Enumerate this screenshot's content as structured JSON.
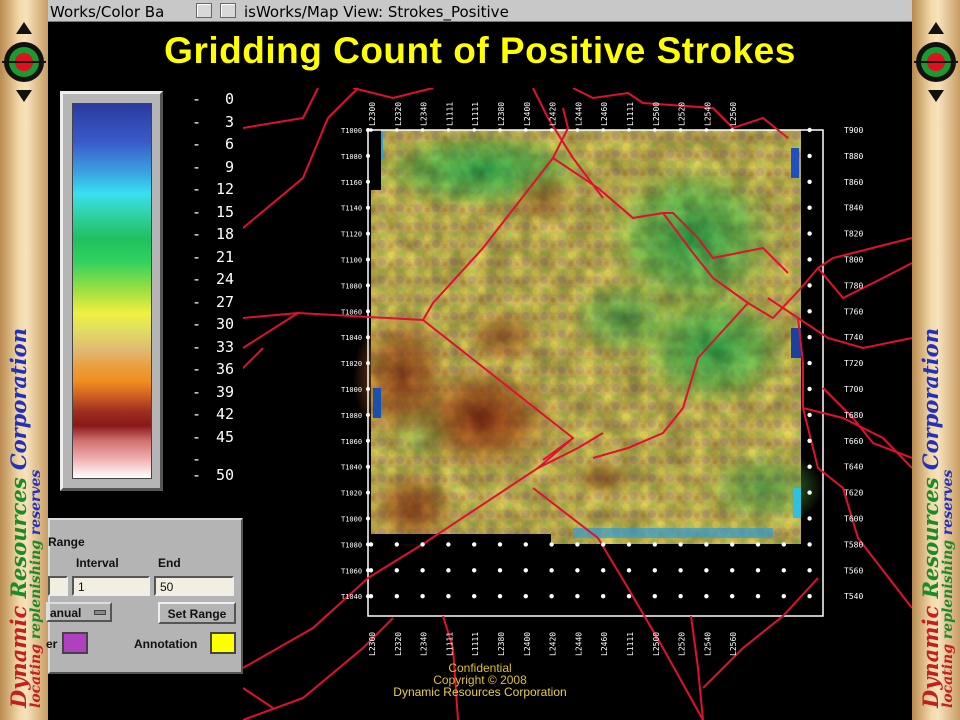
{
  "windows": {
    "color_bar_title": "Works/Color Ba",
    "map_view_title": "isWorks/Map View: Strokes_Positive"
  },
  "slide": {
    "title": "Gridding Count of Positive Strokes"
  },
  "brand": {
    "word1": "Dynamic",
    "word2": "Resources",
    "word3": "Corporation",
    "tagline": "locating replenishing reserves"
  },
  "color_bar": {
    "ticks": [
      "0",
      "3",
      "6",
      "9",
      "12",
      "15",
      "18",
      "21",
      "24",
      "27",
      "30",
      "33",
      "36",
      "39",
      "42",
      "45",
      "50"
    ]
  },
  "range_panel": {
    "range_label": "Range",
    "interval_label": "Interval",
    "end_label": "End",
    "start_value": "",
    "interval_value": "1",
    "end_value": "50",
    "mode_label": "anual",
    "set_range_label": "Set Range",
    "border_label": "er",
    "annotation_label": "Annotation",
    "border_color": "#b040c0",
    "annotation_color": "#ffff00"
  },
  "map": {
    "x_labels": [
      "L2300",
      "L2320",
      "L2340",
      "L1111",
      "L1111",
      "L2380",
      "L2400",
      "L2420",
      "L2440",
      "L2460",
      "L1111",
      "L2500",
      "L2520",
      "L2540",
      "L2560"
    ],
    "x_labels_bottom": [
      "L2300",
      "L2320",
      "L2340",
      "L1111",
      "L1111",
      "L2380",
      "L2400",
      "L2420",
      "L2440",
      "L2460",
      "L1111",
      "L2500",
      "L2520",
      "L2540",
      "L2560"
    ],
    "y_labels_left": [
      "T1000",
      "T1080",
      "T1160",
      "T1140",
      "T1120",
      "T1100",
      "T1080",
      "T1060",
      "T1040",
      "T1020",
      "T1000",
      "T1080",
      "T1060",
      "T1040",
      "T1020",
      "T1000",
      "T1080",
      "T1060",
      "T1040"
    ],
    "y_labels_right": [
      "T900",
      "T880",
      "T860",
      "T840",
      "T820",
      "T800",
      "T780",
      "T760",
      "T740",
      "T720",
      "T700",
      "T680",
      "T660",
      "T640",
      "T620",
      "T600",
      "T580",
      "T560",
      "T540"
    ]
  },
  "footer": {
    "line1": "Confidential",
    "line2": "Copyright © 2008",
    "line3": "Dynamic Resources Corporation"
  },
  "colors": {
    "title": "#ffff00",
    "boundary": "#e01030",
    "background": "#000000"
  }
}
